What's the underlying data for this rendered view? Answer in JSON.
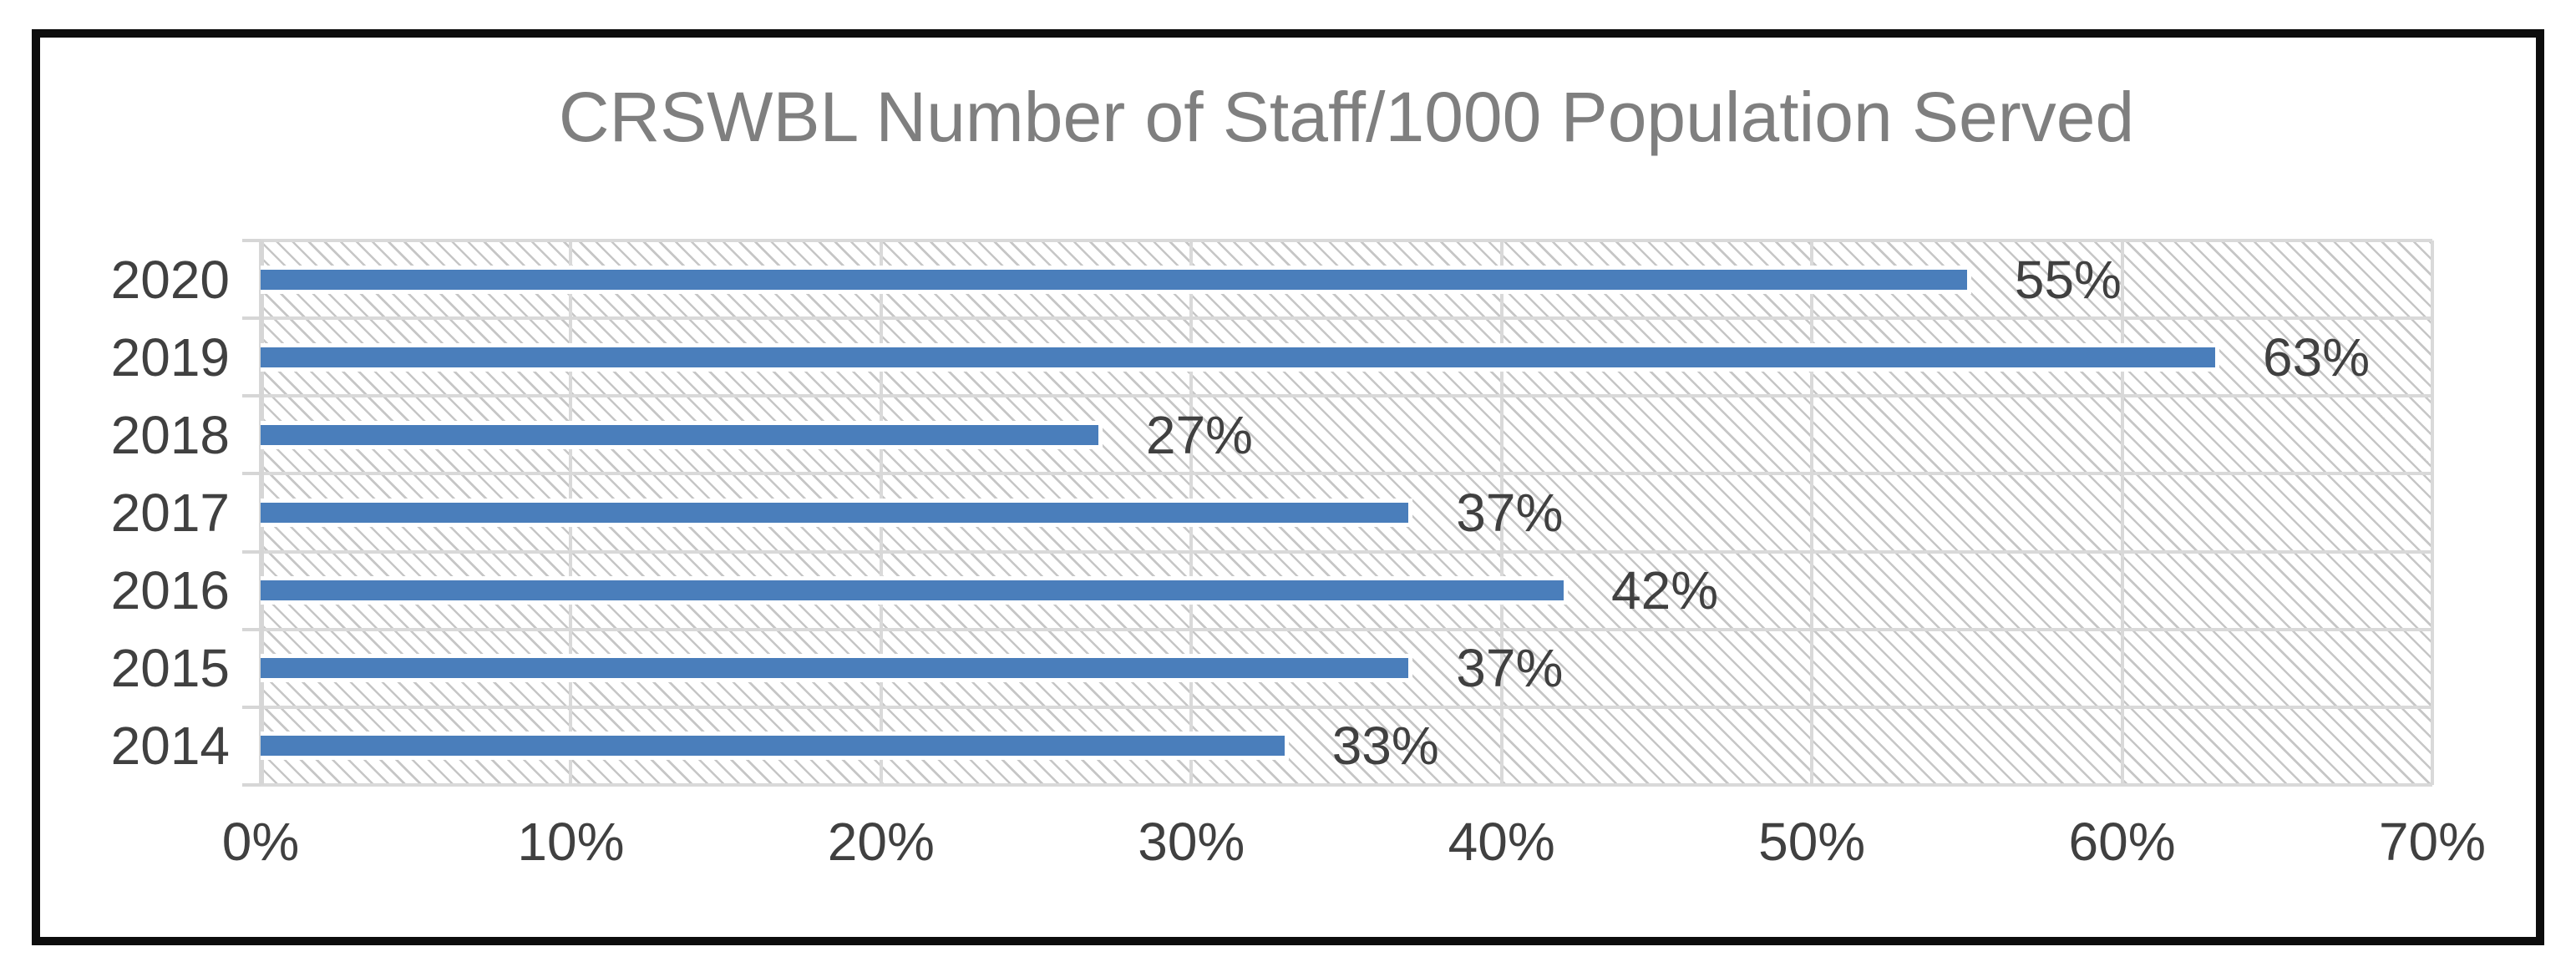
{
  "chart_data": {
    "type": "bar",
    "orientation": "horizontal",
    "title": "CRSWBL Number of Staff/1000 Population Served",
    "categories": [
      "2020",
      "2019",
      "2018",
      "2017",
      "2016",
      "2015",
      "2014"
    ],
    "values": [
      55,
      63,
      27,
      37,
      42,
      37,
      33
    ],
    "value_labels": [
      "55%",
      "63%",
      "27%",
      "37%",
      "42%",
      "37%",
      "33%"
    ],
    "xlabel": "",
    "ylabel": "",
    "x_axis": {
      "min": 0,
      "max": 70,
      "step": 10,
      "tick_labels": [
        "0%",
        "10%",
        "20%",
        "30%",
        "40%",
        "50%",
        "60%",
        "70%"
      ]
    },
    "grid": true,
    "legend": "none",
    "plot_area_pattern": "light-downward-diagonal-hatch",
    "colors": {
      "bar": "#4a7ebb",
      "bar_outline": "#ffffff",
      "title_text": "#7f7f7f",
      "label_text": "#404040",
      "gridline": "#d9d9d9",
      "hatch": "#c6c6c6",
      "frame_border": "#0d0d0d",
      "background": "#ffffff"
    }
  }
}
